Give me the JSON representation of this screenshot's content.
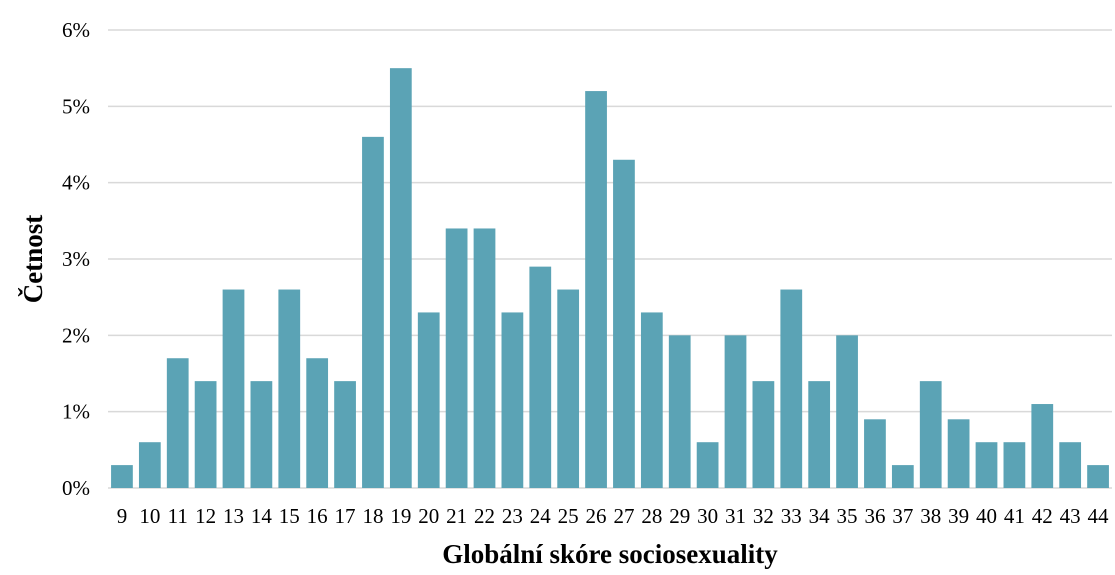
{
  "chart_data": {
    "type": "bar",
    "title": "",
    "xlabel": "Globální skóre sociosexuality",
    "ylabel": "Četnost",
    "categories": [
      "9",
      "10",
      "11",
      "12",
      "13",
      "14",
      "15",
      "16",
      "17",
      "18",
      "19",
      "20",
      "21",
      "22",
      "23",
      "24",
      "25",
      "26",
      "27",
      "28",
      "29",
      "30",
      "31",
      "32",
      "33",
      "34",
      "35",
      "36",
      "37",
      "38",
      "39",
      "40",
      "41",
      "42",
      "43",
      "44"
    ],
    "series": [
      {
        "values": [
          0.3,
          0.6,
          1.7,
          1.4,
          2.6,
          1.4,
          2.6,
          1.7,
          1.4,
          4.6,
          5.5,
          2.3,
          3.4,
          3.4,
          2.3,
          2.9,
          2.6,
          5.2,
          4.3,
          2.3,
          2.0,
          0.6,
          2.0,
          1.4,
          2.6,
          1.4,
          2.0,
          0.9,
          0.3,
          1.4,
          0.9,
          0.6,
          0.6,
          1.1,
          0.6,
          0.3
        ]
      }
    ],
    "yticks": [
      "0%",
      "1%",
      "2%",
      "3%",
      "4%",
      "5%",
      "6%"
    ],
    "ylim": [
      0,
      6
    ],
    "y_unit": "%",
    "grid": "horizontal",
    "legend": "none",
    "colors": {
      "bar": "#5ba3b5",
      "grid": "#d9d9d9"
    }
  }
}
